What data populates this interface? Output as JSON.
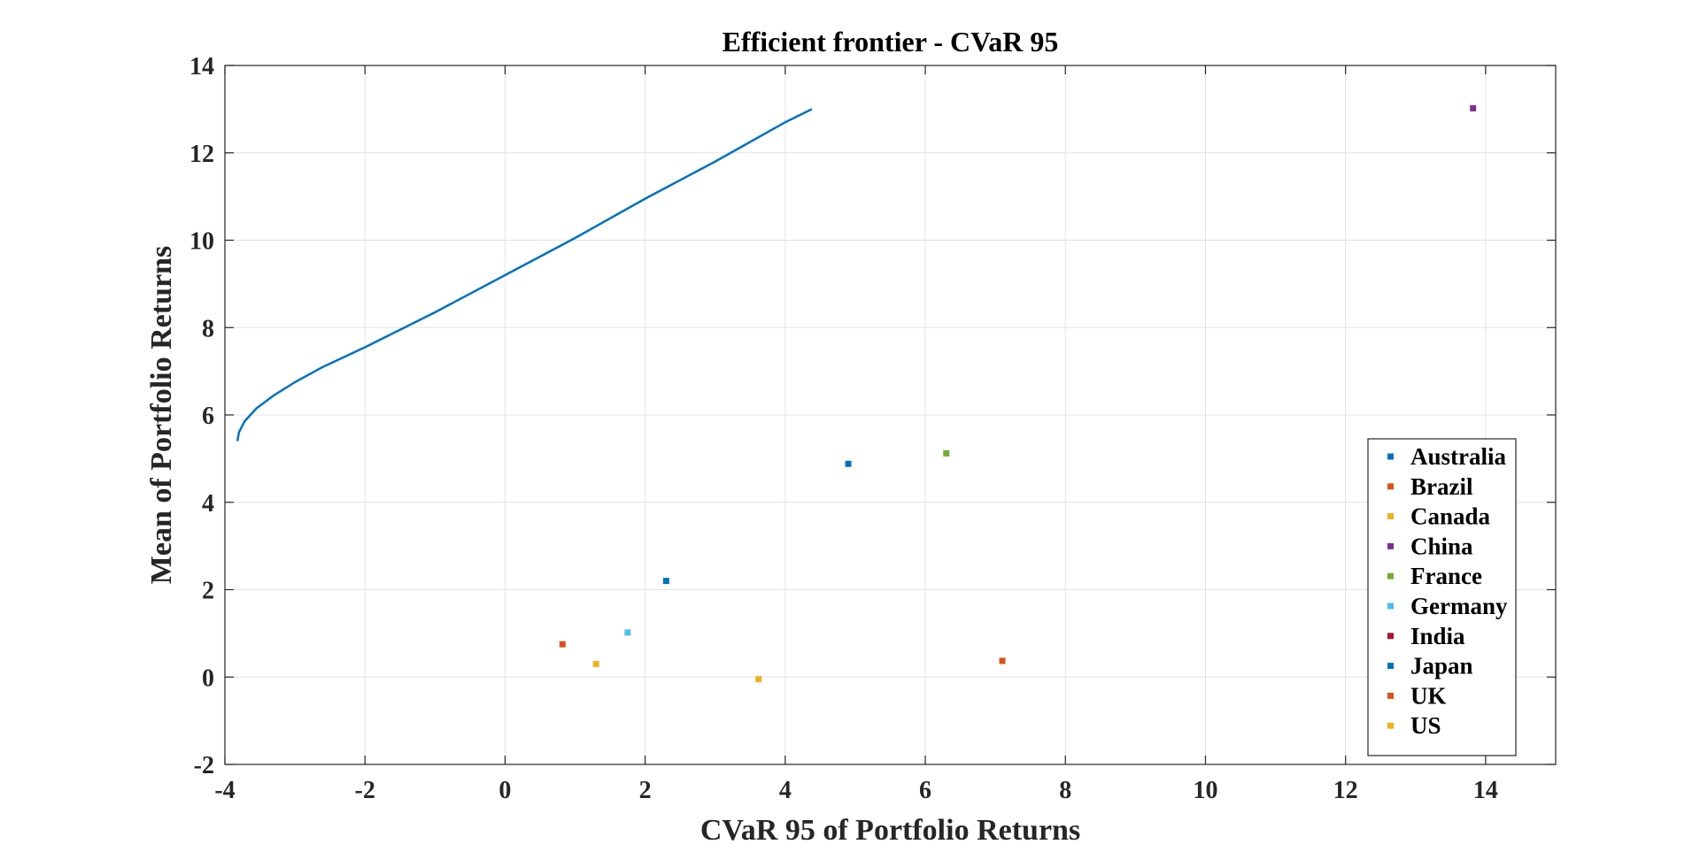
{
  "chart_data": {
    "type": "scatter",
    "title": "Efficient frontier - CVaR 95",
    "xlabel": "CVaR 95 of Portfolio Returns",
    "ylabel": "Mean of Portfolio Returns",
    "xlim": [
      -4,
      15
    ],
    "ylim": [
      -2,
      14
    ],
    "xticks": [
      -4,
      -2,
      0,
      2,
      4,
      6,
      8,
      10,
      12,
      14
    ],
    "yticks": [
      -2,
      0,
      2,
      4,
      6,
      8,
      10,
      12,
      14
    ],
    "grid": true,
    "legend_position": "bottom-right",
    "frontier": {
      "name": "Efficient frontier",
      "color": "#0072BD",
      "x": [
        -3.82,
        -3.8,
        -3.72,
        -3.55,
        -3.3,
        -3.0,
        -2.6,
        -2.0,
        -1.0,
        0.0,
        1.0,
        2.0,
        3.0,
        4.0,
        4.38
      ],
      "y": [
        5.4,
        5.6,
        5.85,
        6.15,
        6.45,
        6.75,
        7.1,
        7.55,
        8.35,
        9.2,
        10.05,
        10.95,
        11.8,
        12.7,
        13.0
      ]
    },
    "series": [
      {
        "name": "Australia",
        "color": "#0072BD",
        "x": 2.3,
        "y": 2.2
      },
      {
        "name": "Brazil",
        "color": "#D95319",
        "x": 0.82,
        "y": 0.75
      },
      {
        "name": "Canada",
        "color": "#EDB120",
        "x": 1.3,
        "y": 0.3
      },
      {
        "name": "China",
        "color": "#7E2F8E",
        "x": 13.82,
        "y": 13.02
      },
      {
        "name": "France",
        "color": "#77AC30",
        "x": 6.3,
        "y": 5.12
      },
      {
        "name": "Germany",
        "color": "#4DBEEE",
        "x": 1.75,
        "y": 1.02
      },
      {
        "name": "India",
        "color": "#A2142F",
        "x": null,
        "y": null
      },
      {
        "name": "Japan",
        "color": "#0072BD",
        "x": 4.9,
        "y": 4.88
      },
      {
        "name": "UK",
        "color": "#D95319",
        "x": 7.1,
        "y": 0.37
      },
      {
        "name": "US",
        "color": "#EDB120",
        "x": 3.62,
        "y": -0.05
      }
    ]
  }
}
